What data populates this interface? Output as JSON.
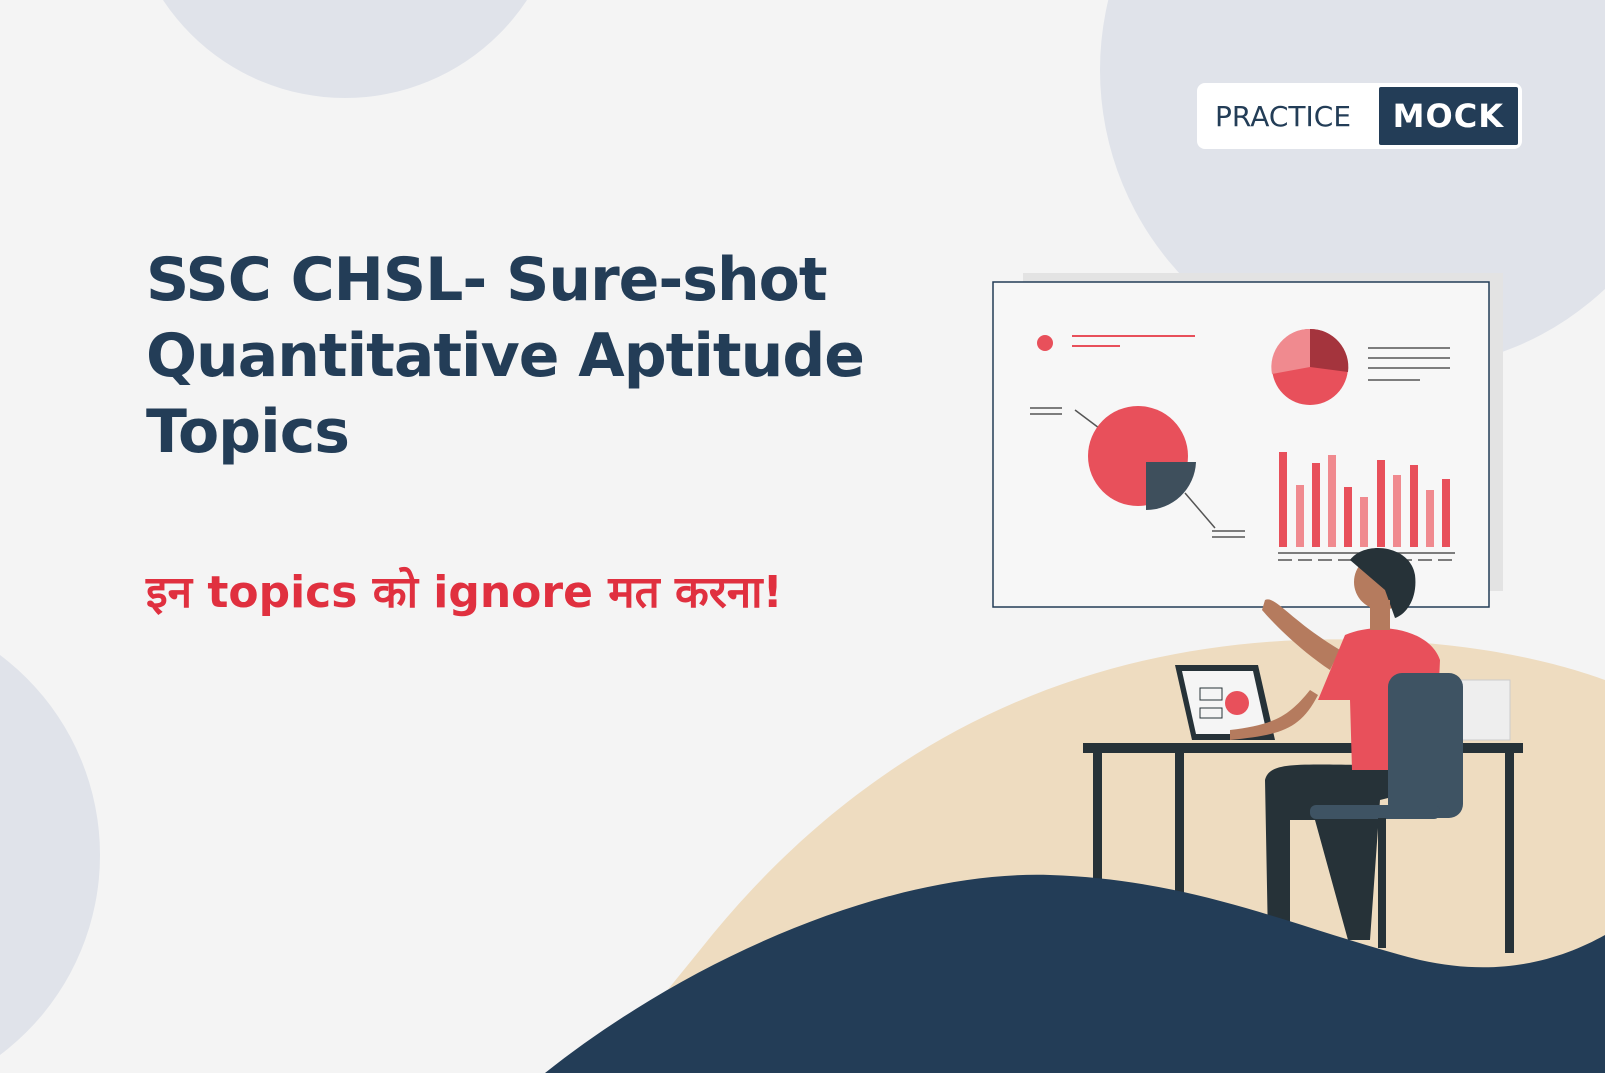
{
  "brand": {
    "part1": "PRACTICE",
    "part2": "MOCK"
  },
  "title_lines": [
    "SSC CHSL- Sure-shot",
    "Quantitative Aptitude",
    "Topics"
  ],
  "subtitle": "इन topics को ignore मत करना!",
  "colors": {
    "navy": "#233d57",
    "red": "#e0303f",
    "background": "#f4f4f4",
    "circle": "#e0e3ea",
    "sand": "#eedcc0"
  }
}
